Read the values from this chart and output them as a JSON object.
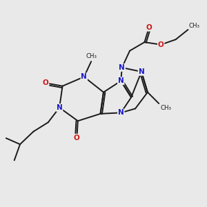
{
  "bg_color": "#e9e9e9",
  "bond_color": "#1a1a1a",
  "N_color": "#1818cc",
  "O_color": "#cc1818",
  "C_color": "#1a1a1a",
  "line_width": 1.4,
  "font_size_atom": 7.5,
  "xlim": [
    0,
    10
  ],
  "ylim": [
    0,
    10
  ]
}
